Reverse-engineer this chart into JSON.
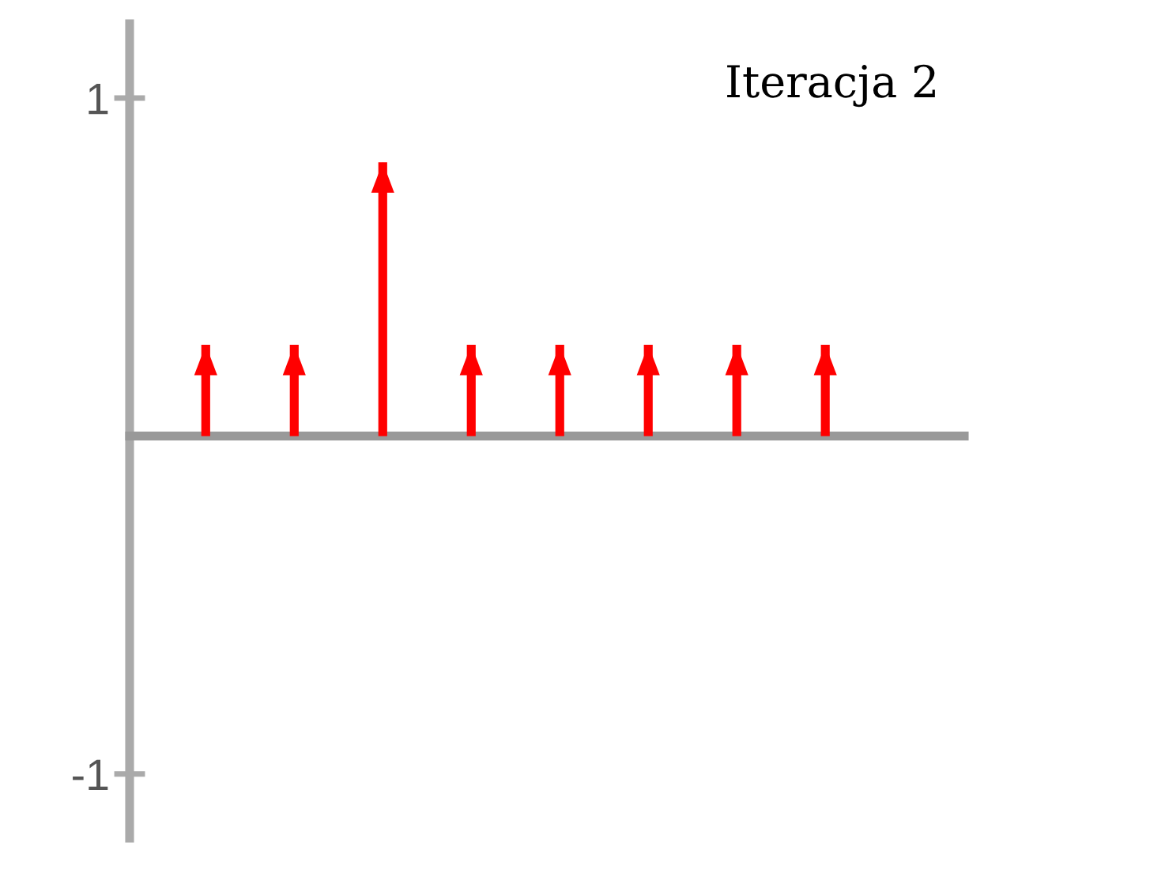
{
  "chart_data": {
    "type": "bar",
    "title": "Iteracja 2",
    "categories": [
      null,
      null,
      null,
      null,
      null,
      null,
      null,
      null
    ],
    "values": [
      0.27,
      0.27,
      0.81,
      0.27,
      0.27,
      0.27,
      0.27,
      0.27
    ],
    "color": "#ff0000",
    "ylim": [
      -1.19,
      1.22
    ],
    "yticks": [
      -1,
      1
    ],
    "grid": false
  }
}
